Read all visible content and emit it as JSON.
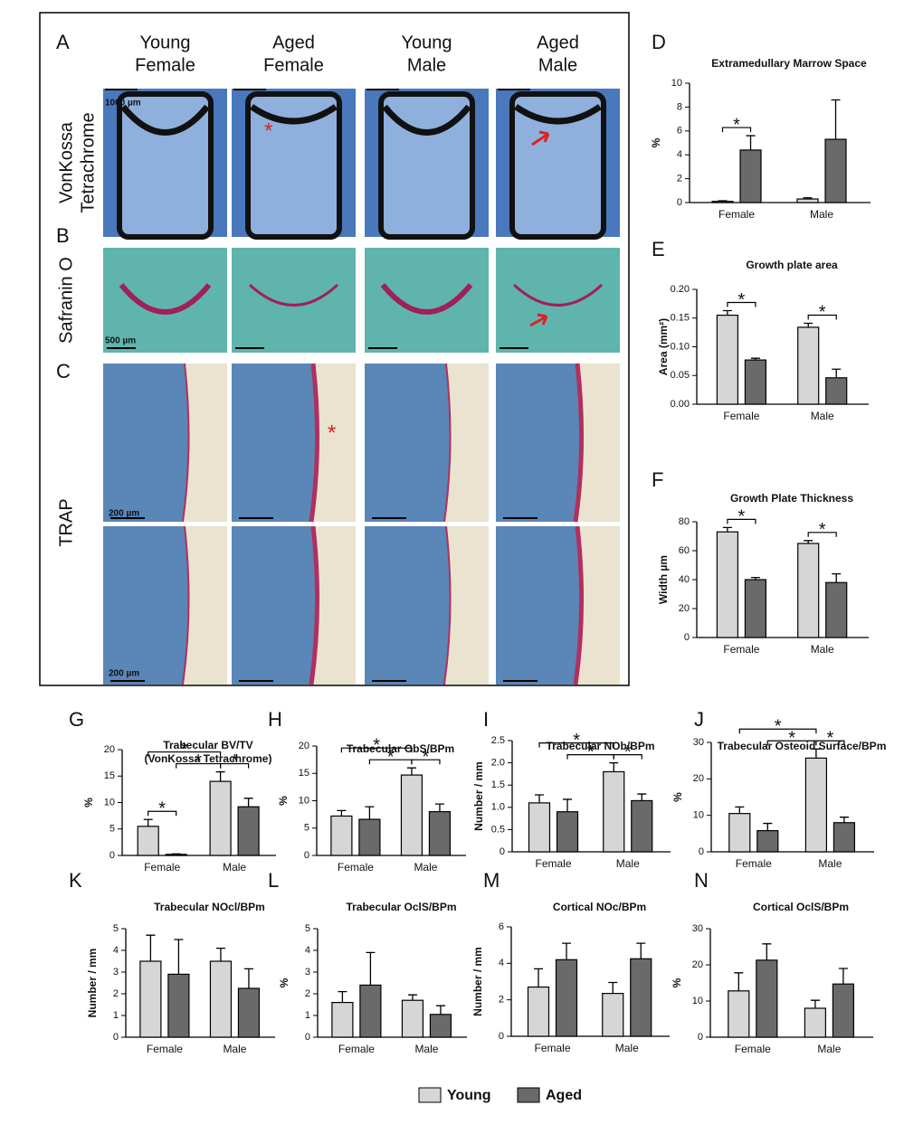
{
  "figure": {
    "panels": [
      "A",
      "B",
      "C"
    ],
    "columns": [
      [
        "Young",
        "Female"
      ],
      [
        "Aged",
        "Female"
      ],
      [
        "Young",
        "Male"
      ],
      [
        "Aged",
        "Male"
      ]
    ],
    "rows": [
      [
        "VonKossa",
        "Tetrachrome"
      ],
      [
        "Safranin O"
      ],
      [
        "TRAP"
      ]
    ],
    "scale_bars": [
      "1000 µm",
      "500 µm",
      "200 µm",
      "200 µm"
    ],
    "annotations": [
      "*",
      "*"
    ]
  },
  "legend": {
    "series": [
      {
        "name": "Young",
        "color": "#d6d6d6"
      },
      {
        "name": "Aged",
        "color": "#6a6a6a"
      }
    ]
  },
  "chart_data": [
    {
      "type": "bar",
      "panel": "D",
      "title": "Extramedullary Marrow Space",
      "ylabel": "%",
      "categories": [
        "Female",
        "Male"
      ],
      "series": [
        {
          "values": [
            0.1,
            0.3
          ],
          "errors": [
            0.05,
            0.1
          ]
        },
        {
          "values": [
            4.4,
            5.3
          ],
          "errors": [
            1.2,
            3.3
          ]
        }
      ],
      "ylim": [
        0,
        10
      ],
      "yticks": [
        0,
        2,
        4,
        6,
        8,
        10
      ],
      "significance": [
        {
          "between": [
            0,
            1
          ],
          "label": "*"
        }
      ]
    },
    {
      "type": "bar",
      "panel": "E",
      "title": "Growth plate area",
      "ylabel": "Area (mm²)",
      "categories": [
        "Female",
        "Male"
      ],
      "series": [
        {
          "values": [
            0.155,
            0.134
          ],
          "errors": [
            0.008,
            0.007
          ]
        },
        {
          "values": [
            0.077,
            0.046
          ],
          "errors": [
            0.003,
            0.015
          ]
        }
      ],
      "ylim": [
        0,
        0.2
      ],
      "yticks": [
        {
          "value": 0,
          "label": "0.00"
        },
        {
          "value": 0.05,
          "label": "0.05"
        },
        {
          "value": 0.1,
          "label": "0.10"
        },
        {
          "value": 0.15,
          "label": "0.15"
        },
        {
          "value": 0.2,
          "label": "0.20"
        }
      ],
      "significance": [
        {
          "between": [
            0,
            1
          ],
          "label": "*"
        },
        {
          "between": [
            2,
            3
          ],
          "label": "*"
        }
      ]
    },
    {
      "type": "bar",
      "panel": "F",
      "title": "Growth Plate Thickness",
      "ylabel": "Width µm",
      "categories": [
        "Female",
        "Male"
      ],
      "series": [
        {
          "values": [
            73,
            65
          ],
          "errors": [
            3,
            2
          ]
        },
        {
          "values": [
            40,
            38
          ],
          "errors": [
            1.5,
            6
          ]
        }
      ],
      "ylim": [
        0,
        80
      ],
      "yticks": [
        0,
        20,
        40,
        60,
        80
      ],
      "significance": [
        {
          "between": [
            0,
            1
          ],
          "label": "*"
        },
        {
          "between": [
            2,
            3
          ],
          "label": "*"
        }
      ]
    },
    {
      "type": "bar",
      "panel": "G",
      "title": "Trabecular BV/TV",
      "subtitle": "(VonKossa Tetrachrome)",
      "ylabel": "%",
      "categories": [
        "Female",
        "Male"
      ],
      "series": [
        {
          "values": [
            5.5,
            14
          ],
          "errors": [
            1.3,
            1.8
          ]
        },
        {
          "values": [
            0.2,
            9.2
          ],
          "errors": [
            0.1,
            1.6
          ]
        }
      ],
      "ylim": [
        0,
        20
      ],
      "yticks": [
        0,
        5,
        10,
        15,
        20
      ],
      "significance": [
        {
          "between": [
            0,
            1
          ],
          "label": "*"
        },
        {
          "between": [
            1,
            2
          ],
          "label": "*"
        },
        {
          "between": [
            2,
            3
          ],
          "label": "*"
        },
        {
          "between": [
            0,
            2
          ],
          "label": "*"
        }
      ]
    },
    {
      "type": "bar",
      "panel": "H",
      "title": "Trabecular ObS/BPm",
      "ylabel": "%",
      "categories": [
        "Female",
        "Male"
      ],
      "series": [
        {
          "values": [
            7.2,
            14.7
          ],
          "errors": [
            1,
            1.3
          ]
        },
        {
          "values": [
            6.6,
            8
          ],
          "errors": [
            2.3,
            1.4
          ]
        }
      ],
      "ylim": [
        0,
        20
      ],
      "yticks": [
        0,
        5,
        10,
        15,
        20
      ],
      "significance": [
        {
          "between": [
            1,
            2
          ],
          "label": "*"
        },
        {
          "between": [
            2,
            3
          ],
          "label": "*"
        },
        {
          "between": [
            0,
            2
          ],
          "label": "*"
        }
      ]
    },
    {
      "type": "bar",
      "panel": "I",
      "title": "Trabecular NOb/BPm",
      "ylabel": "Number / mm",
      "categories": [
        "Female",
        "Male"
      ],
      "series": [
        {
          "values": [
            1.1,
            1.8
          ],
          "errors": [
            0.18,
            0.2
          ]
        },
        {
          "values": [
            0.9,
            1.15
          ],
          "errors": [
            0.28,
            0.15
          ]
        }
      ],
      "ylim": [
        0,
        2.5
      ],
      "yticks": [
        0,
        {
          "value": 0.5,
          "label": "0.5"
        },
        {
          "value": 1,
          "label": "1.0"
        },
        {
          "value": 1.5,
          "label": "1.5"
        },
        {
          "value": 2,
          "label": "2.0"
        },
        {
          "value": 2.5,
          "label": "2.5"
        }
      ],
      "significance": [
        {
          "between": [
            1,
            2
          ],
          "label": "*"
        },
        {
          "between": [
            2,
            3
          ],
          "label": "*"
        },
        {
          "between": [
            0,
            2
          ],
          "label": "*"
        }
      ]
    },
    {
      "type": "bar",
      "panel": "J",
      "title": "Trabecular Osteoid Surface/BPm",
      "ylabel": "%",
      "categories": [
        "Female",
        "Male"
      ],
      "series": [
        {
          "values": [
            10.5,
            25.7
          ],
          "errors": [
            1.8,
            2.5
          ]
        },
        {
          "values": [
            5.8,
            8
          ],
          "errors": [
            2,
            1.5
          ]
        }
      ],
      "ylim": [
        0,
        30
      ],
      "yticks": [
        0,
        10,
        20,
        30
      ],
      "significance": [
        {
          "between": [
            1,
            2
          ],
          "label": "*"
        },
        {
          "between": [
            2,
            3
          ],
          "label": "*"
        },
        {
          "between": [
            0,
            2
          ],
          "label": "*"
        }
      ]
    },
    {
      "type": "bar",
      "panel": "K",
      "title": "Trabecular NOcl/BPm",
      "ylabel": "Number / mm",
      "categories": [
        "Female",
        "Male"
      ],
      "series": [
        {
          "values": [
            3.5,
            3.5
          ],
          "errors": [
            1.2,
            0.6
          ]
        },
        {
          "values": [
            2.9,
            2.25
          ],
          "errors": [
            1.6,
            0.9
          ]
        }
      ],
      "ylim": [
        0,
        5
      ],
      "yticks": [
        0,
        1,
        2,
        3,
        4,
        5
      ],
      "significance": []
    },
    {
      "type": "bar",
      "panel": "L",
      "title": "Trabecular OclS/BPm",
      "ylabel": "%",
      "categories": [
        "Female",
        "Male"
      ],
      "series": [
        {
          "values": [
            1.6,
            1.7
          ],
          "errors": [
            0.5,
            0.25
          ]
        },
        {
          "values": [
            2.4,
            1.05
          ],
          "errors": [
            1.5,
            0.4
          ]
        }
      ],
      "ylim": [
        0,
        5
      ],
      "yticks": [
        0,
        1,
        2,
        3,
        4,
        5
      ],
      "significance": []
    },
    {
      "type": "bar",
      "panel": "M",
      "title": "Cortical NOc/BPm",
      "ylabel": "Number / mm",
      "categories": [
        "Female",
        "Male"
      ],
      "series": [
        {
          "values": [
            2.7,
            2.35
          ],
          "errors": [
            1,
            0.6
          ]
        },
        {
          "values": [
            4.2,
            4.25
          ],
          "errors": [
            0.9,
            0.85
          ]
        }
      ],
      "ylim": [
        0,
        6
      ],
      "yticks": [
        0,
        2,
        4,
        6
      ],
      "significance": []
    },
    {
      "type": "bar",
      "panel": "N",
      "title": "Cortical OclS/BPm",
      "ylabel": "%",
      "categories": [
        "Female",
        "Male"
      ],
      "series": [
        {
          "values": [
            12.8,
            8
          ],
          "errors": [
            5,
            2.2
          ]
        },
        {
          "values": [
            21.3,
            14.7
          ],
          "errors": [
            4.5,
            4.3
          ]
        }
      ],
      "ylim": [
        0,
        30
      ],
      "yticks": [
        0,
        10,
        20,
        30
      ],
      "significance": []
    }
  ]
}
